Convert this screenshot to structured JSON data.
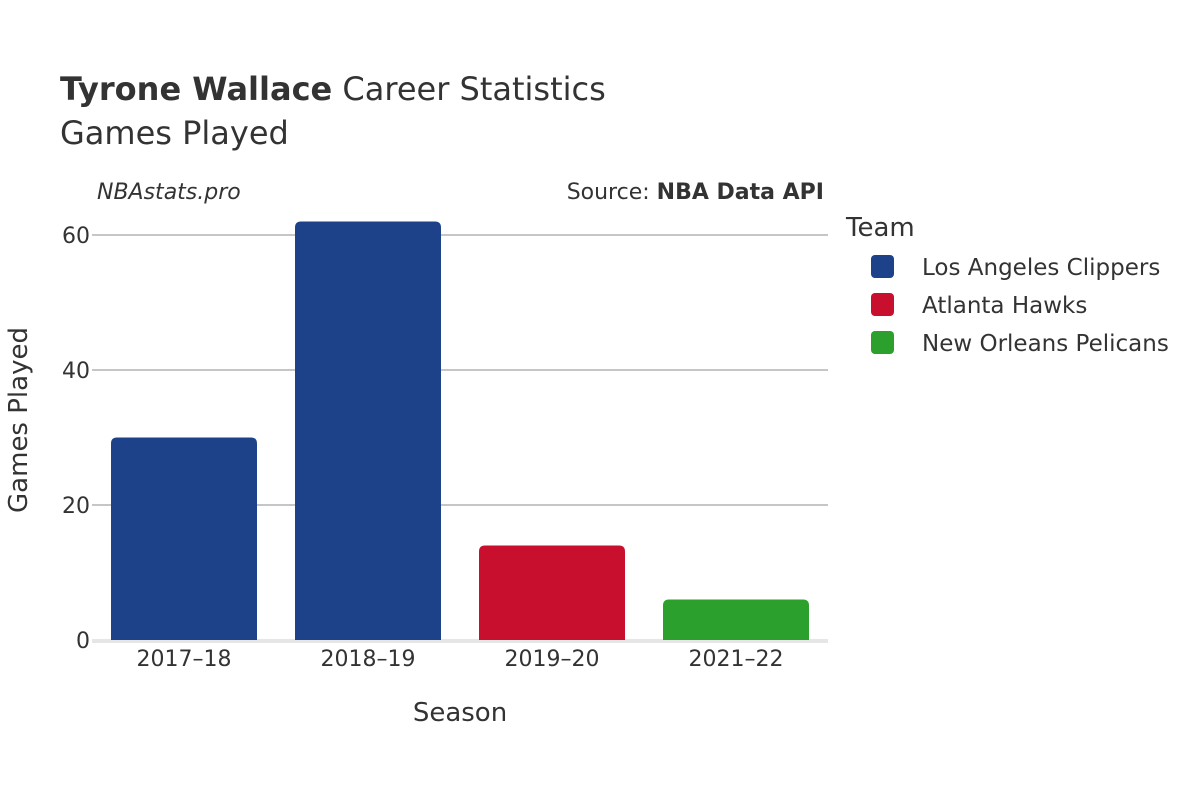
{
  "header": {
    "player_name": "Tyrone Wallace",
    "title_suffix": " Career Statistics",
    "subtitle": "Games Played"
  },
  "watermark": "NBAstats.pro",
  "source": {
    "prefix": "Source: ",
    "name": "NBA Data API"
  },
  "legend": {
    "title": "Team"
  },
  "chart_data": {
    "type": "bar",
    "categories": [
      "2017–18",
      "2018–19",
      "2019–20",
      "2021–22"
    ],
    "values": [
      30,
      62,
      14,
      6
    ],
    "teams": [
      "Los Angeles Clippers",
      "Los Angeles Clippers",
      "Atlanta Hawks",
      "New Orleans Pelicans"
    ],
    "series": [
      {
        "name": "Los Angeles Clippers",
        "color": "#1d428a"
      },
      {
        "name": "Atlanta Hawks",
        "color": "#c8102e"
      },
      {
        "name": "New Orleans Pelicans",
        "color": "#2ca02c"
      }
    ],
    "xlabel": "Season",
    "ylabel": "Games Played",
    "ylim": [
      0,
      65
    ],
    "yticks": [
      0,
      20,
      40,
      60
    ],
    "grid": true,
    "legend_position": "right"
  }
}
